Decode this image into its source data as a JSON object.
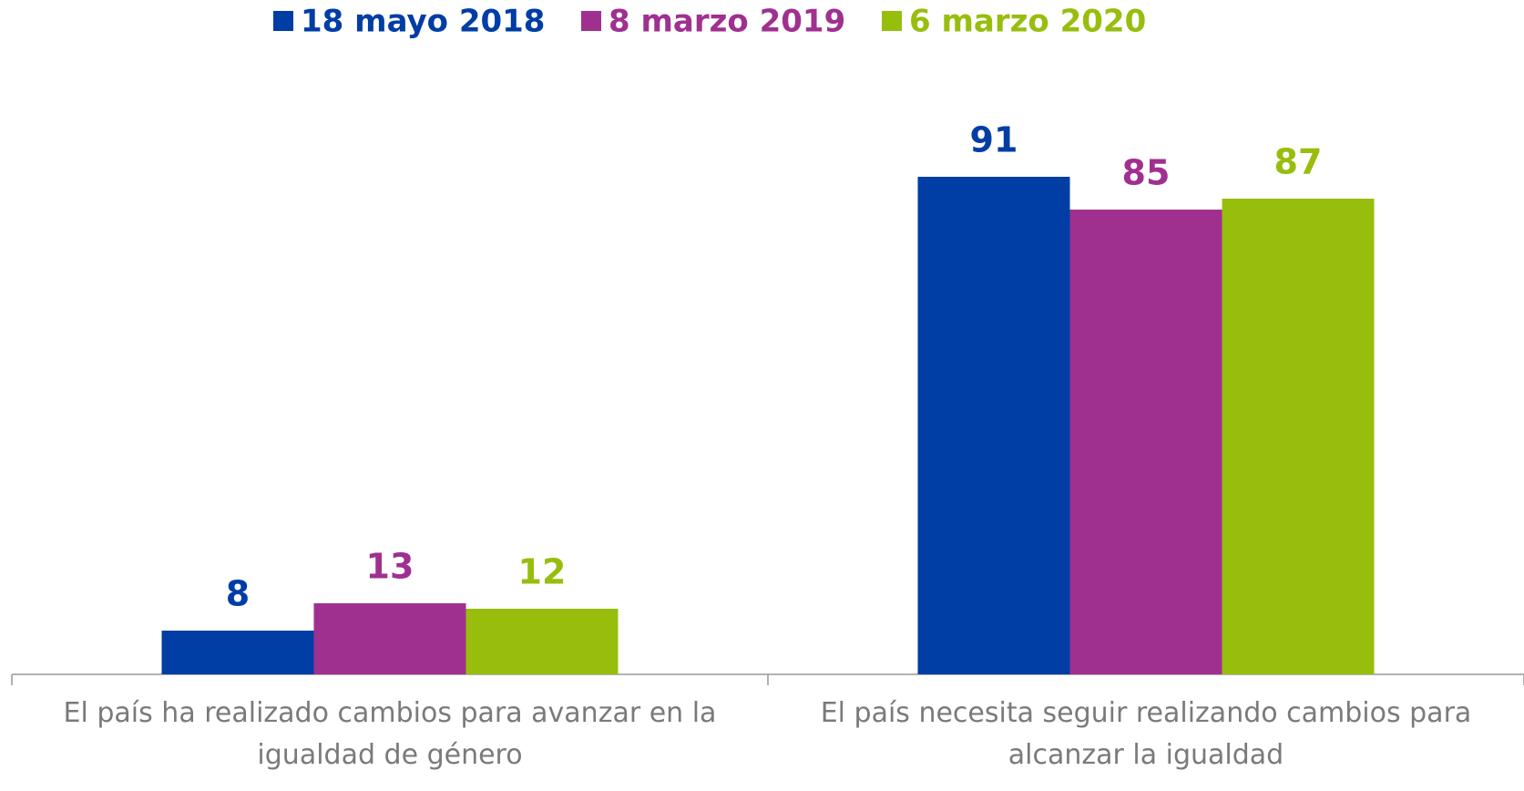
{
  "chart_data": {
    "type": "bar",
    "categories": [
      "El país ha realizado cambios para avanzar en la igualdad de género",
      "El país necesita seguir realizando cambios para alcanzar la igualdad"
    ],
    "series": [
      {
        "name": "18 mayo 2018",
        "color": "#003da5",
        "values": [
          8,
          91
        ]
      },
      {
        "name": "8 marzo 2019",
        "color": "#a03090",
        "values": [
          13,
          85
        ]
      },
      {
        "name": "6 marzo 2020",
        "color": "#97be0d",
        "values": [
          12,
          87
        ]
      }
    ],
    "ylim": [
      0,
      100
    ],
    "legend": "top"
  }
}
